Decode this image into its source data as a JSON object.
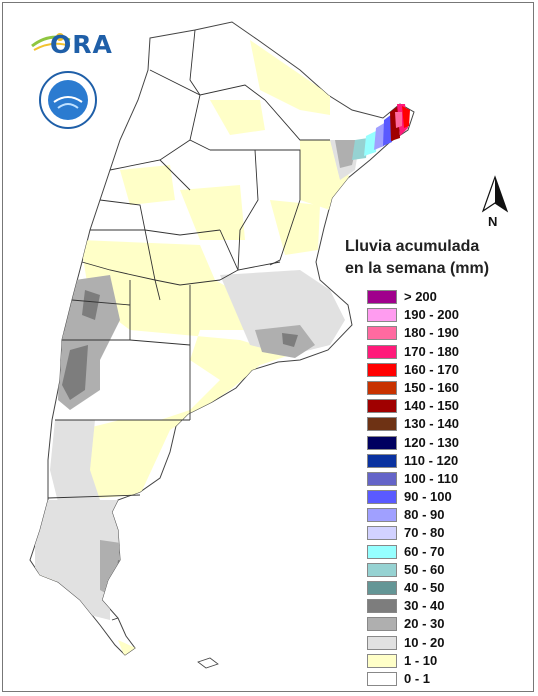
{
  "header": {
    "logo_text": "ORA",
    "seal_name": "SERVICIO METEOROLÓGICO NACIONAL ARGENTINA"
  },
  "north_arrow": {
    "label": "N"
  },
  "legend": {
    "title_line1": "Lluvia acumulada",
    "title_line2": "en la semana (mm)",
    "items": [
      {
        "label": "> 200",
        "color": "#a0008c"
      },
      {
        "label": "190 - 200",
        "color": "#ff9cf0"
      },
      {
        "label": "180 - 190",
        "color": "#ff6aa0"
      },
      {
        "label": "170 - 180",
        "color": "#ff1a7a"
      },
      {
        "label": "160 - 170",
        "color": "#ff0000"
      },
      {
        "label": "150 - 160",
        "color": "#c83200"
      },
      {
        "label": "140 - 150",
        "color": "#a00000"
      },
      {
        "label": "130 - 140",
        "color": "#6e3214"
      },
      {
        "label": "120 - 130",
        "color": "#000060"
      },
      {
        "label": "110 - 120",
        "color": "#0a32a0"
      },
      {
        "label": "100 - 110",
        "color": "#6464c8"
      },
      {
        "label": "90 - 100",
        "color": "#5a5aff"
      },
      {
        "label": "80 - 90",
        "color": "#a0a0ff"
      },
      {
        "label": "70 - 80",
        "color": "#d2d2ff"
      },
      {
        "label": "60 - 70",
        "color": "#96ffff"
      },
      {
        "label": "50 - 60",
        "color": "#96d2d2"
      },
      {
        "label": "40 - 50",
        "color": "#649696"
      },
      {
        "label": "30 - 40",
        "color": "#7d7d7d"
      },
      {
        "label": "20 - 30",
        "color": "#afafaf"
      },
      {
        "label": "10 - 20",
        "color": "#e1e1e1"
      },
      {
        "label": "1 - 10",
        "color": "#ffffc8"
      },
      {
        "label": "0 - 1",
        "color": "#ffffff"
      }
    ]
  }
}
